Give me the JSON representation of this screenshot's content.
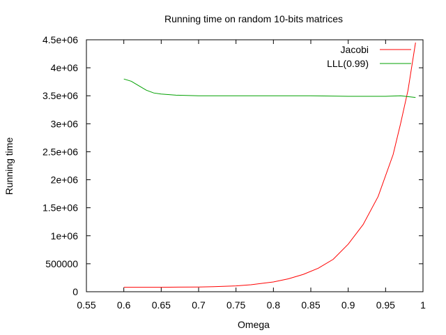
{
  "chart_data": {
    "type": "line",
    "title": "Running time on random 10-bits matrices",
    "xlabel": "Omega",
    "ylabel": "Running time",
    "xlim": [
      0.55,
      1.0
    ],
    "ylim": [
      0,
      4500000
    ],
    "xticks": [
      0.55,
      0.6,
      0.65,
      0.7,
      0.75,
      0.8,
      0.85,
      0.9,
      0.95,
      1.0
    ],
    "xtick_labels": [
      "0.55",
      "0.6",
      "0.65",
      "0.7",
      "0.75",
      "0.8",
      "0.85",
      "0.9",
      "0.95",
      "1"
    ],
    "yticks": [
      0,
      500000,
      1000000,
      1500000,
      2000000,
      2500000,
      3000000,
      3500000,
      4000000,
      4500000
    ],
    "ytick_labels": [
      "0",
      "500000",
      "1e+06",
      "1.5e+06",
      "2e+06",
      "2.5e+06",
      "3e+06",
      "3.5e+06",
      "4e+06",
      "4.5e+06"
    ],
    "grid": false,
    "legend_position": "top-right",
    "series": [
      {
        "name": "Jacobi",
        "color": "#ff0000",
        "x": [
          0.6,
          0.65,
          0.7,
          0.72,
          0.75,
          0.77,
          0.8,
          0.82,
          0.84,
          0.86,
          0.88,
          0.9,
          0.92,
          0.94,
          0.96,
          0.97,
          0.98,
          0.99
        ],
        "y": [
          80000,
          80000,
          85000,
          90000,
          105000,
          125000,
          175000,
          230000,
          310000,
          420000,
          580000,
          850000,
          1200000,
          1700000,
          2450000,
          3000000,
          3600000,
          4450000
        ]
      },
      {
        "name": "LLL(0.99)",
        "color": "#00a000",
        "x": [
          0.6,
          0.61,
          0.62,
          0.63,
          0.64,
          0.65,
          0.67,
          0.7,
          0.75,
          0.8,
          0.85,
          0.9,
          0.95,
          0.97,
          0.99
        ],
        "y": [
          3800000,
          3760000,
          3680000,
          3600000,
          3550000,
          3530000,
          3510000,
          3500000,
          3500000,
          3500000,
          3500000,
          3490000,
          3490000,
          3500000,
          3470000
        ]
      }
    ]
  }
}
